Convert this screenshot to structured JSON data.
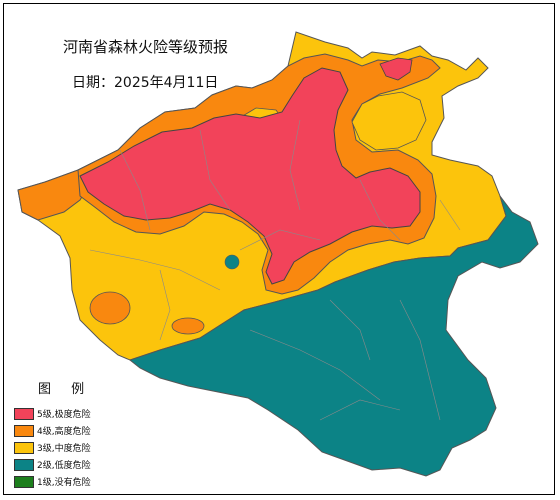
{
  "map": {
    "title": "河南省森林火险等级预报",
    "date": "日期：2025年4月11日"
  },
  "legend": {
    "title": "图 例",
    "items": [
      {
        "label": "5级,极度危险",
        "color": "#f2435a"
      },
      {
        "label": "4级,高度危险",
        "color": "#f9880f"
      },
      {
        "label": "3级,中度危险",
        "color": "#fcc40c"
      },
      {
        "label": "2级,低度危险",
        "color": "#0c8386"
      },
      {
        "label": "1级,没有危险",
        "color": "#1d7f1d"
      }
    ]
  }
}
